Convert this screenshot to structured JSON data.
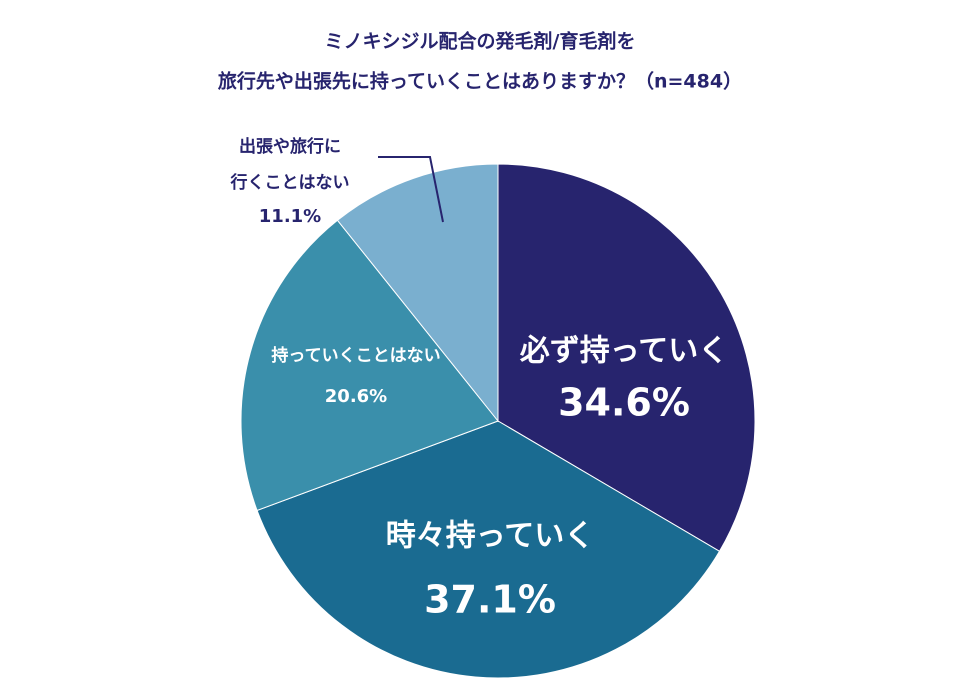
{
  "chart_data": {
    "type": "pie",
    "title": [
      "ミノキシジル配合の発毛剤/育毛剤を",
      "旅行先や出張先に持っていくことはありますか？（n=484）"
    ],
    "categories": [
      [
        "必ず持っていく"
      ],
      [
        "時々持っていく"
      ],
      [
        "持っていくことはない"
      ],
      [
        "出張や旅行に",
        "行くことはない"
      ]
    ],
    "values": [
      34.6,
      37.1,
      20.6,
      11.1
    ],
    "value_labels": [
      "34.6%",
      "37.1%",
      "20.6%",
      "11.1%"
    ],
    "colors": [
      "#27246e",
      "#1a6b91",
      "#3a8fab",
      "#7aafcf"
    ]
  }
}
